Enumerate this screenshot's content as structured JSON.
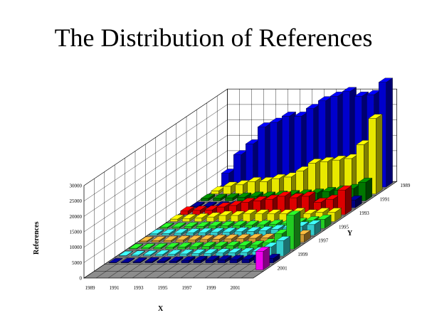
{
  "title": "The Distribution of References",
  "chart_data": {
    "type": "bar3d",
    "title": "The Distribution of References",
    "xlabel": "X",
    "ylabel": "Y",
    "zlabel": "References",
    "zlim": [
      0,
      30000
    ],
    "z_ticks": [
      "0",
      "5000",
      "10000",
      "15000",
      "20000",
      "25000",
      "30000"
    ],
    "x_ticks": [
      "1989",
      "1991",
      "1993",
      "1995",
      "1997",
      "1999",
      "2001"
    ],
    "y_ticks": [
      "1989",
      "1991",
      "1993",
      "1995",
      "1997",
      "1999",
      "2001"
    ],
    "y_rows": [
      1989,
      1990,
      1991,
      1992,
      1993,
      1994,
      1995,
      1996,
      1997,
      1998,
      1999,
      2000,
      2001
    ],
    "x_columns": [
      1989,
      1990,
      1991,
      1992,
      1993,
      1994,
      1995,
      1996,
      1997,
      1998,
      1999,
      2000,
      2001,
      2002
    ],
    "row_colors": {
      "1989": "#0000cc",
      "1990": "#e8e800",
      "1991": "#007700",
      "1992": "#000080",
      "1993": "#dd0000",
      "1994": "#e8e800",
      "1995": "#22cc22",
      "1996": "#33cccc",
      "1997": "#cc9933",
      "1998": "#22cc22",
      "1999": "#33cccc",
      "2000": "#000080",
      "2001": "#ee00ee"
    },
    "values": [
      [
        4500,
        10500,
        14000,
        19500,
        21000,
        23000,
        23000,
        25500,
        28000,
        29500,
        31000,
        29500,
        30000,
        34000
      ],
      [
        1000,
        2500,
        3000,
        4000,
        4000,
        5000,
        5500,
        7500,
        10000,
        10500,
        11000,
        11500,
        16000,
        24500
      ],
      [
        800,
        800,
        1000,
        1200,
        1500,
        1500,
        1800,
        2000,
        2200,
        2500,
        3000,
        3500,
        4000,
        6000
      ],
      [
        500,
        500,
        600,
        700,
        800,
        900,
        1000,
        1100,
        1200,
        1300,
        1500,
        1700,
        2000,
        2500
      ],
      [
        1200,
        1400,
        1500,
        2500,
        3000,
        4000,
        4500,
        5000,
        6000,
        5500,
        6000,
        4000,
        5000,
        8000
      ],
      [
        800,
        1000,
        1200,
        1500,
        2000,
        2000,
        2500,
        2500,
        2500,
        2500,
        3000,
        2500,
        3000,
        3000
      ],
      [
        400,
        500,
        600,
        700,
        800,
        900,
        1000,
        1100,
        1200,
        1400,
        1500,
        2000,
        2500,
        3000
      ],
      [
        500,
        600,
        700,
        800,
        900,
        1000,
        1100,
        1200,
        1300,
        1500,
        2000,
        2500,
        3000,
        3500
      ],
      [
        400,
        500,
        600,
        700,
        800,
        900,
        1000,
        1100,
        1200,
        1300,
        1400,
        1500,
        2000,
        2500
      ],
      [
        300,
        400,
        500,
        600,
        700,
        800,
        900,
        1000,
        1100,
        1200,
        1300,
        2000,
        5000,
        11000
      ],
      [
        200,
        300,
        400,
        500,
        600,
        700,
        800,
        900,
        1000,
        1100,
        1200,
        1500,
        3000,
        5000
      ],
      [
        100,
        200,
        300,
        400,
        500,
        600,
        700,
        800,
        900,
        1000,
        1100,
        1200,
        2000,
        1500
      ],
      [
        0,
        0,
        0,
        0,
        0,
        0,
        0,
        0,
        0,
        0,
        0,
        0,
        0,
        6000
      ]
    ]
  }
}
